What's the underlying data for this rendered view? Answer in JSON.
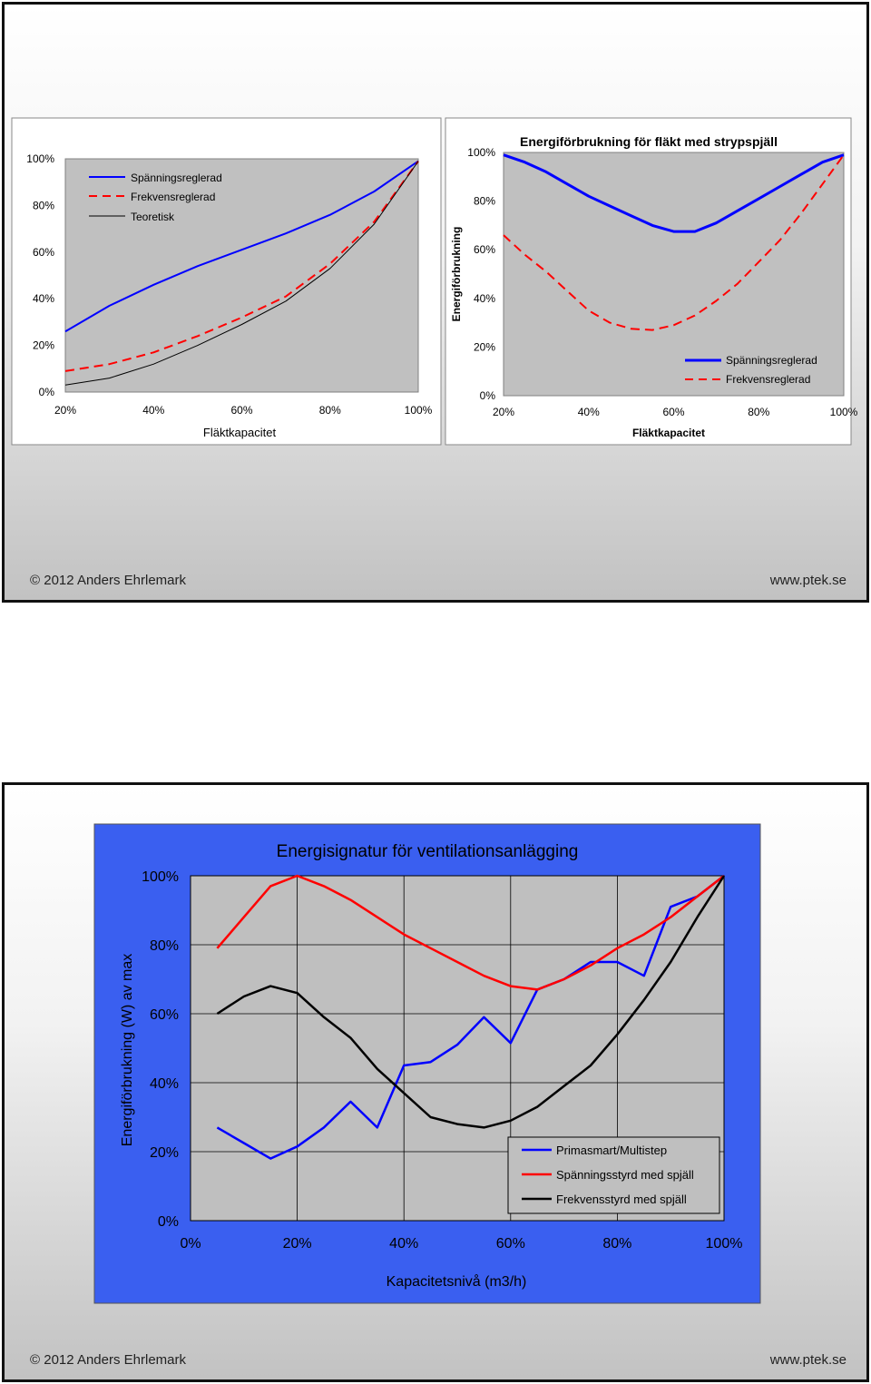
{
  "footer": {
    "copyright": "2012 Anders Ehrlemark",
    "website": "www.ptek.se"
  },
  "chart_data": [
    {
      "type": "line",
      "title": "",
      "xlabel": "Fläktkapacitet",
      "ylabel": "",
      "xlim": [
        20,
        100
      ],
      "ylim": [
        0,
        100
      ],
      "x_ticks": [
        "20%",
        "40%",
        "60%",
        "80%",
        "100%"
      ],
      "y_ticks": [
        "0%",
        "20%",
        "40%",
        "60%",
        "80%",
        "100%"
      ],
      "legend": "top-left",
      "grid": false,
      "series": [
        {
          "name": "Spänningsreglerad",
          "color": "#0000ff",
          "dash": "solid",
          "x": [
            20,
            30,
            40,
            50,
            60,
            70,
            80,
            90,
            100
          ],
          "y": [
            26,
            37,
            46,
            54,
            61,
            68,
            76,
            86,
            99
          ]
        },
        {
          "name": "Frekvensreglerad",
          "color": "#ff0000",
          "dash": "dashed",
          "x": [
            20,
            30,
            40,
            50,
            60,
            70,
            80,
            90,
            100
          ],
          "y": [
            9,
            12,
            17,
            24,
            32,
            41,
            55,
            73,
            99
          ]
        },
        {
          "name": "Teoretisk",
          "color": "#000000",
          "dash": "solid",
          "x": [
            20,
            30,
            40,
            50,
            60,
            70,
            80,
            90,
            100
          ],
          "y": [
            3,
            6,
            12,
            20,
            29,
            39,
            53,
            72,
            99
          ]
        }
      ]
    },
    {
      "type": "line",
      "title": "Energiförbrukning för fläkt med strypspjäll",
      "xlabel": "Fläktkapacitet",
      "ylabel": "Energiförbrukning",
      "xlim": [
        20,
        100
      ],
      "ylim": [
        0,
        100
      ],
      "x_ticks": [
        "20%",
        "40%",
        "60%",
        "80%",
        "100%"
      ],
      "y_ticks": [
        "0%",
        "20%",
        "40%",
        "60%",
        "80%",
        "100%"
      ],
      "legend": "bottom-right",
      "grid": false,
      "series": [
        {
          "name": "Spänningsreglerad",
          "color": "#0000ff",
          "dash": "solid",
          "x": [
            20,
            25,
            30,
            35,
            40,
            45,
            50,
            55,
            60,
            62,
            65,
            70,
            75,
            80,
            85,
            90,
            95,
            100
          ],
          "y": [
            99,
            96,
            92,
            87,
            82,
            78,
            74,
            70,
            67.5,
            67.5,
            67.5,
            71,
            76,
            81,
            86,
            91,
            96,
            99
          ]
        },
        {
          "name": "Frekvensreglerad",
          "color": "#ff0000",
          "dash": "dashed",
          "x": [
            20,
            25,
            30,
            35,
            40,
            45,
            50,
            55,
            60,
            65,
            70,
            75,
            80,
            85,
            90,
            95,
            100
          ],
          "y": [
            66,
            58,
            51,
            43,
            35,
            30,
            27.5,
            27,
            29,
            33,
            39,
            46,
            55,
            64,
            75,
            87,
            99
          ]
        }
      ]
    },
    {
      "type": "line",
      "title": "Energisignatur för ventilationsanlägging",
      "xlabel": "Kapacitetsnivå (m3/h)",
      "ylabel": "Energiförbrukning (W) av max",
      "xlim": [
        0,
        100
      ],
      "ylim": [
        0,
        100
      ],
      "x_ticks": [
        "0%",
        "20%",
        "40%",
        "60%",
        "80%",
        "100%"
      ],
      "y_ticks": [
        "0%",
        "20%",
        "40%",
        "60%",
        "80%",
        "100%"
      ],
      "legend": "bottom-right",
      "grid": true,
      "series": [
        {
          "name": "Primasmart/Multistep",
          "color": "#0000ff",
          "x": [
            5,
            10,
            15,
            20,
            25,
            30,
            35,
            40,
            45,
            50,
            55,
            60,
            65,
            70,
            75,
            80,
            85,
            90,
            95,
            100
          ],
          "y": [
            27,
            22.5,
            18,
            21.5,
            27,
            34.5,
            27,
            45,
            46,
            51,
            59,
            51.5,
            67,
            70,
            75,
            75,
            71,
            91,
            94,
            100
          ]
        },
        {
          "name": "Spänningsstyrd med spjäll",
          "color": "#ff0000",
          "x": [
            5,
            10,
            15,
            20,
            25,
            30,
            35,
            40,
            45,
            50,
            55,
            60,
            65,
            70,
            75,
            80,
            85,
            90,
            95,
            100
          ],
          "y": [
            79,
            88,
            97,
            100,
            97,
            93,
            88,
            83,
            79,
            75,
            71,
            68,
            67,
            70,
            74,
            79,
            83,
            88,
            94,
            100
          ]
        },
        {
          "name": "Frekvensstyrd med spjäll",
          "color": "#000000",
          "x": [
            5,
            10,
            15,
            20,
            25,
            30,
            35,
            40,
            45,
            50,
            55,
            60,
            65,
            70,
            75,
            80,
            85,
            90,
            95,
            100
          ],
          "y": [
            60,
            65,
            68,
            66,
            59,
            53,
            44,
            37,
            30,
            28,
            27,
            29,
            33,
            39,
            45,
            54,
            64,
            75,
            88,
            100
          ]
        }
      ]
    }
  ]
}
